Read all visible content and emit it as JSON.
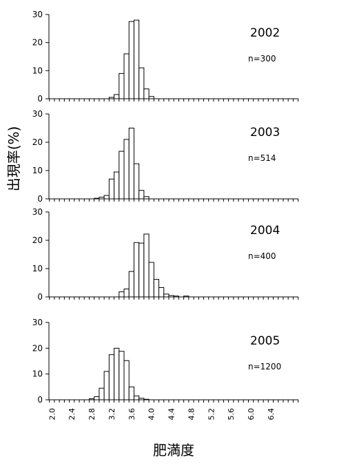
{
  "chart_data": {
    "type": "bar",
    "x_categories": [
      "2.0",
      "2.1",
      "2.2",
      "2.3",
      "2.4",
      "2.5",
      "2.6",
      "2.7",
      "2.8",
      "2.9",
      "3.0",
      "3.1",
      "3.2",
      "3.3",
      "3.4",
      "3.5",
      "3.6",
      "3.7",
      "3.8",
      "3.9",
      "4.0",
      "4.1",
      "4.2",
      "4.3",
      "4.4",
      "4.5",
      "4.6",
      "4.7",
      "4.8",
      "4.9",
      "5.0",
      "5.1",
      "5.2",
      "5.3",
      "5.4",
      "5.5",
      "5.6",
      "5.7",
      "5.8",
      "5.9",
      "6.0",
      "6.1",
      "6.2",
      "6.3",
      "6.4",
      "6.5",
      "6.6",
      "6.7",
      "6.8",
      "6.9"
    ],
    "x_tick_labels": [
      "2.0",
      "2.4",
      "2.8",
      "3.2",
      "3.6",
      "4.0",
      "4.4",
      "4.8",
      "5.2",
      "5.6",
      "6.0",
      "6.4"
    ],
    "xlabel": "肥満度",
    "ylabel": "出現率(%)",
    "ylim": [
      0,
      30
    ],
    "y_ticks": [
      0,
      10,
      20,
      30
    ],
    "panels": [
      {
        "year": "2002",
        "n": "n=300",
        "x": [
          3.2,
          3.3,
          3.4,
          3.5,
          3.6,
          3.7,
          3.8,
          3.9,
          4.0,
          4.1
        ],
        "values": [
          0.5,
          1.5,
          9.0,
          16.0,
          27.5,
          28.0,
          11.0,
          3.5,
          0.8,
          0
        ]
      },
      {
        "year": "2003",
        "n": "n=514",
        "x": [
          2.9,
          3.0,
          3.1,
          3.2,
          3.3,
          3.4,
          3.5,
          3.6,
          3.7,
          3.8,
          3.9,
          4.0
        ],
        "values": [
          0.2,
          0.6,
          1.2,
          7.0,
          9.5,
          16.8,
          21.0,
          25.0,
          12.4,
          3.0,
          0.8,
          0
        ]
      },
      {
        "year": "2004",
        "n": "n=400",
        "x": [
          3.4,
          3.5,
          3.6,
          3.7,
          3.8,
          3.9,
          4.0,
          4.1,
          4.2,
          4.3,
          4.4,
          4.5,
          4.6,
          4.7,
          4.8,
          4.9,
          5.0,
          5.1,
          5.2,
          5.3
        ],
        "values": [
          1.8,
          2.8,
          9.0,
          19.2,
          19.0,
          22.2,
          12.2,
          6.2,
          3.3,
          1.0,
          0.5,
          0.3,
          0,
          0.3,
          0,
          0,
          0,
          0,
          0,
          0
        ]
      },
      {
        "year": "2005",
        "n": "n=1200",
        "x": [
          2.8,
          2.9,
          3.0,
          3.1,
          3.2,
          3.3,
          3.4,
          3.5,
          3.6,
          3.7,
          3.8,
          3.9,
          4.0
        ],
        "values": [
          0.4,
          1.2,
          4.5,
          11.0,
          17.5,
          20.0,
          18.8,
          15.2,
          5.0,
          1.5,
          0.6,
          0.2,
          0
        ]
      }
    ]
  }
}
